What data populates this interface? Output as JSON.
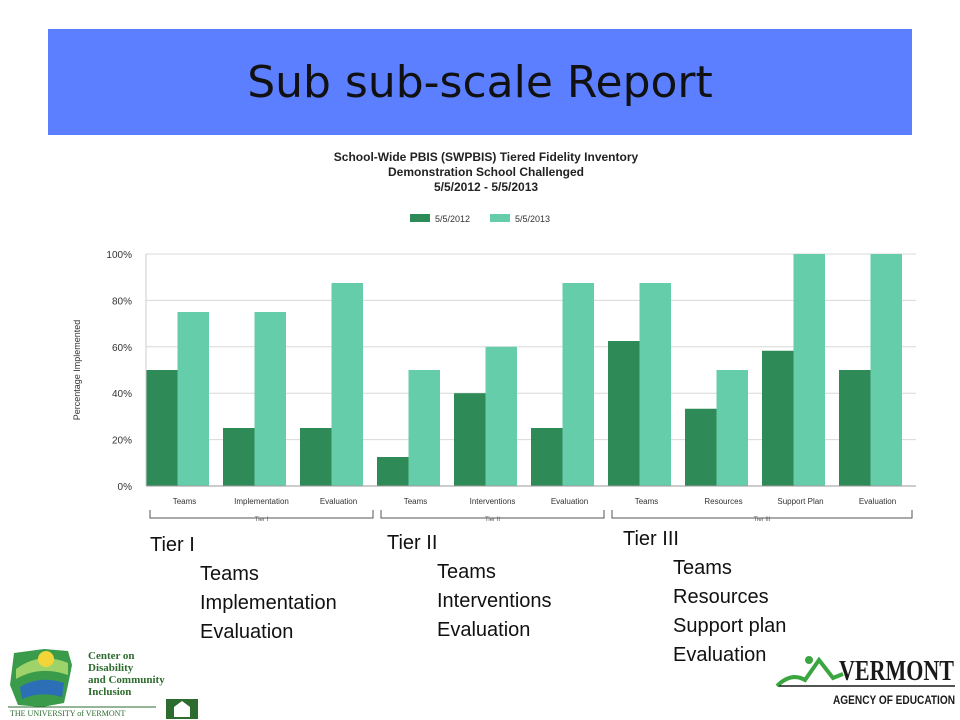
{
  "slide": {
    "title": "Sub sub-scale Report"
  },
  "chart_header": {
    "line1": "School-Wide PBIS (SWPBIS) Tiered Fidelity Inventory",
    "line2": "Demonstration School Challenged",
    "line3": "5/5/2012 - 5/5/2013"
  },
  "chart_data": {
    "type": "bar",
    "ylabel": "Percentage Implemented",
    "ylim": [
      0,
      100
    ],
    "yticks": [
      "0%",
      "20%",
      "40%",
      "60%",
      "80%",
      "100%"
    ],
    "legend_position": "top-center",
    "categories": [
      "Teams",
      "Implementation",
      "Evaluation",
      "Teams",
      "Interventions",
      "Evaluation",
      "Teams",
      "Resources",
      "Support Plan",
      "Evaluation"
    ],
    "groups": [
      {
        "label": "Tier I",
        "count": 3
      },
      {
        "label": "Tier II",
        "count": 3
      },
      {
        "label": "Tier III",
        "count": 4
      }
    ],
    "series": [
      {
        "name": "5/5/2012",
        "color": "#2e8b57",
        "values": [
          50,
          25,
          25,
          12.5,
          40,
          25,
          62.5,
          33.3,
          58.3,
          50
        ]
      },
      {
        "name": "5/5/2013",
        "color": "#66cdaa",
        "values": [
          75,
          75,
          87.5,
          50,
          60,
          87.5,
          87.5,
          50,
          100,
          100
        ]
      }
    ]
  },
  "tiers": [
    {
      "title": "Tier I",
      "items": [
        "Teams",
        "Implementation",
        "Evaluation"
      ]
    },
    {
      "title": "Tier II",
      "items": [
        "Teams",
        "Interventions",
        "Evaluation"
      ]
    },
    {
      "title": "Tier III",
      "items": [
        "Teams",
        "Resources",
        "Support plan",
        "Evaluation"
      ]
    }
  ],
  "logos": {
    "cdci_lines": [
      "Center on",
      "Disability",
      "and Community",
      "Inclusion"
    ],
    "uvm_text": "THE UNIVERSITY of VERMONT",
    "vermont_text": "VERMONT",
    "agency_text": "AGENCY OF EDUCATION"
  },
  "colors": {
    "title_bar": "#5b7fff",
    "dark_bar": "#2e8b57",
    "light_bar": "#66cdaa"
  }
}
